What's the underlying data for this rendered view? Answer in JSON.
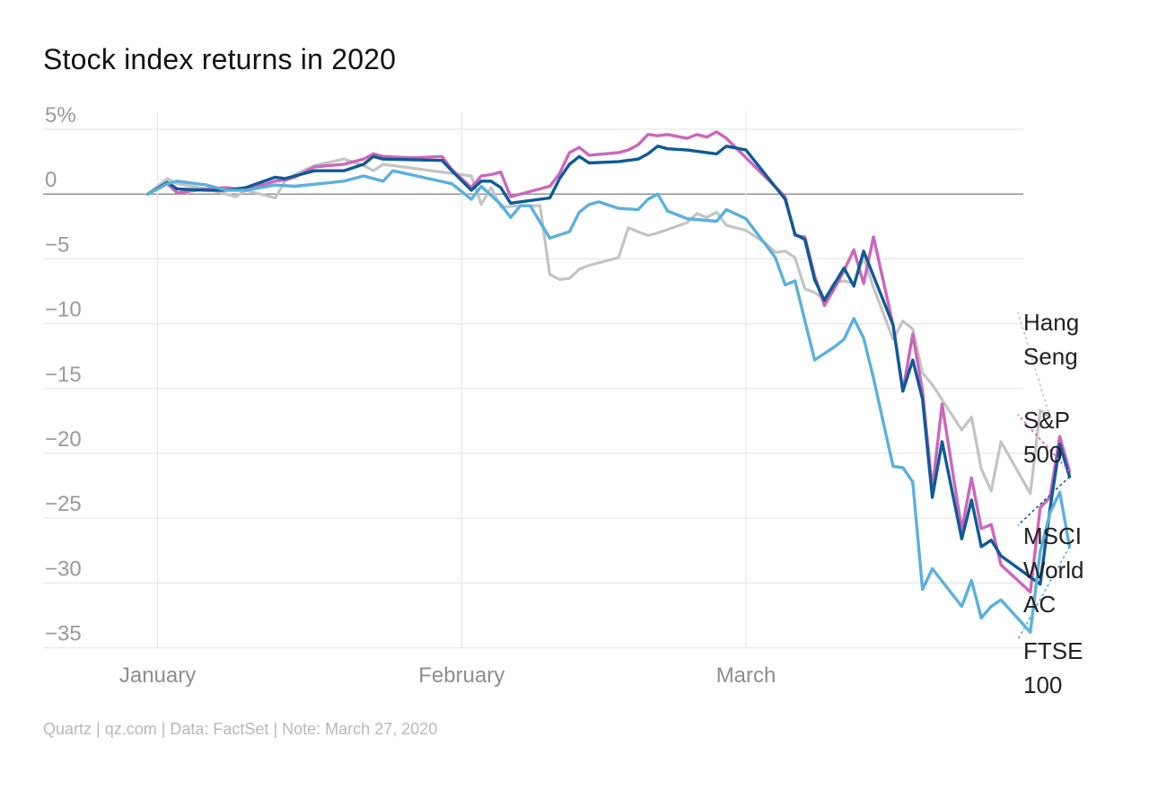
{
  "chart_data": {
    "type": "line",
    "title": "Stock index returns in 2020",
    "source": "Quartz | qz.com | Data: FactSet | Note: March 27, 2020",
    "xlabel": "",
    "ylabel": "",
    "ylim": [
      -35,
      5
    ],
    "y_ticks": [
      5,
      0,
      -5,
      -10,
      -15,
      -20,
      -25,
      -30,
      -35
    ],
    "y_tick_labels": [
      "5%",
      "0",
      "−5",
      "−10",
      "−15",
      "−20",
      "−25",
      "−30",
      "−35"
    ],
    "x_ticks": [
      {
        "label": "January",
        "date": "2020-01-01"
      },
      {
        "label": "February",
        "date": "2020-02-01"
      },
      {
        "label": "March",
        "date": "2020-03-01"
      }
    ],
    "x_range": [
      "2019-12-26",
      "2020-03-28"
    ],
    "grid": true,
    "legend": "direct labels at right end",
    "series": [
      {
        "name": "Hang Seng",
        "label_lines": [
          "Hang",
          "Seng"
        ],
        "color": "#c4c4c4",
        "points": [
          [
            "2019-12-31",
            0.0
          ],
          [
            "2020-01-02",
            1.2
          ],
          [
            "2020-01-03",
            0.8
          ],
          [
            "2020-01-06",
            0.4
          ],
          [
            "2020-01-08",
            0.0
          ],
          [
            "2020-01-09",
            -0.2
          ],
          [
            "2020-01-10",
            0.3
          ],
          [
            "2020-01-13",
            -0.3
          ],
          [
            "2020-01-14",
            1.0
          ],
          [
            "2020-01-15",
            1.5
          ],
          [
            "2020-01-17",
            2.2
          ],
          [
            "2020-01-20",
            2.7
          ],
          [
            "2020-01-22",
            2.2
          ],
          [
            "2020-01-23",
            1.8
          ],
          [
            "2020-01-24",
            2.3
          ],
          [
            "2020-02-02",
            1.4
          ],
          [
            "2020-02-03",
            -0.8
          ],
          [
            "2020-02-04",
            0.5
          ],
          [
            "2020-02-05",
            -1.0
          ],
          [
            "2020-02-07",
            -0.9
          ],
          [
            "2020-02-09",
            -0.9
          ],
          [
            "2020-02-10",
            -6.2
          ],
          [
            "2020-02-11",
            -6.6
          ],
          [
            "2020-02-12",
            -6.5
          ],
          [
            "2020-02-13",
            -5.8
          ],
          [
            "2020-02-14",
            -5.5
          ],
          [
            "2020-02-17",
            -4.9
          ],
          [
            "2020-02-18",
            -2.6
          ],
          [
            "2020-02-19",
            -2.9
          ],
          [
            "2020-02-20",
            -3.2
          ],
          [
            "2020-02-21",
            -3.0
          ],
          [
            "2020-02-24",
            -2.2
          ],
          [
            "2020-02-25",
            -1.5
          ],
          [
            "2020-02-26",
            -1.8
          ],
          [
            "2020-02-27",
            -1.4
          ],
          [
            "2020-02-28",
            -2.4
          ],
          [
            "2020-03-01",
            -2.8
          ],
          [
            "2020-03-02",
            -3.3
          ],
          [
            "2020-03-03",
            -3.8
          ],
          [
            "2020-03-04",
            -4.5
          ],
          [
            "2020-03-05",
            -4.4
          ],
          [
            "2020-03-06",
            -4.9
          ],
          [
            "2020-03-07",
            -7.3
          ],
          [
            "2020-03-08",
            -7.6
          ],
          [
            "2020-03-09",
            -8.1
          ],
          [
            "2020-03-10",
            -6.8
          ],
          [
            "2020-03-11",
            -6.7
          ],
          [
            "2020-03-12",
            -6.9
          ],
          [
            "2020-03-13",
            -4.9
          ],
          [
            "2020-03-14",
            -7.2
          ],
          [
            "2020-03-16",
            -11.2
          ],
          [
            "2020-03-17",
            -9.8
          ],
          [
            "2020-03-18",
            -10.4
          ],
          [
            "2020-03-19",
            -13.8
          ],
          [
            "2020-03-20",
            -14.7
          ],
          [
            "2020-03-23",
            -18.2
          ],
          [
            "2020-03-24",
            -17.2
          ],
          [
            "2020-03-25",
            -21.2
          ],
          [
            "2020-03-26",
            -22.9
          ],
          [
            "2020-03-27",
            -19.1
          ],
          [
            "2020-03-30",
            -23.1
          ],
          [
            "2020-03-31",
            -16.7
          ],
          [
            "2020-04-01",
            -17.2
          ]
        ]
      },
      {
        "name": "S&P 500",
        "label_lines": [
          "S&P",
          "500"
        ],
        "color": "#cc66bb",
        "points": [
          [
            "2019-12-31",
            0.0
          ],
          [
            "2020-01-02",
            0.8
          ],
          [
            "2020-01-03",
            0.1
          ],
          [
            "2020-01-06",
            0.4
          ],
          [
            "2020-01-08",
            0.5
          ],
          [
            "2020-01-09",
            0.4
          ],
          [
            "2020-01-10",
            0.3
          ],
          [
            "2020-01-13",
            1.0
          ],
          [
            "2020-01-14",
            1.1
          ],
          [
            "2020-01-15",
            1.3
          ],
          [
            "2020-01-17",
            2.1
          ],
          [
            "2020-01-20",
            2.3
          ],
          [
            "2020-01-22",
            2.7
          ],
          [
            "2020-01-23",
            3.1
          ],
          [
            "2020-01-24",
            2.9
          ],
          [
            "2020-01-27",
            2.8
          ],
          [
            "2020-01-30",
            2.9
          ],
          [
            "2020-01-31",
            1.9
          ],
          [
            "2020-02-02",
            0.5
          ],
          [
            "2020-02-03",
            1.4
          ],
          [
            "2020-02-04",
            1.5
          ],
          [
            "2020-02-05",
            1.7
          ],
          [
            "2020-02-06",
            -0.2
          ],
          [
            "2020-02-10",
            0.6
          ],
          [
            "2020-02-11",
            1.6
          ],
          [
            "2020-02-12",
            3.2
          ],
          [
            "2020-02-13",
            3.6
          ],
          [
            "2020-02-14",
            3.0
          ],
          [
            "2020-02-17",
            3.2
          ],
          [
            "2020-02-18",
            3.4
          ],
          [
            "2020-02-19",
            3.8
          ],
          [
            "2020-02-20",
            4.6
          ],
          [
            "2020-02-21",
            4.5
          ],
          [
            "2020-02-22",
            4.6
          ],
          [
            "2020-02-24",
            4.3
          ],
          [
            "2020-02-25",
            4.6
          ],
          [
            "2020-02-26",
            4.4
          ],
          [
            "2020-02-27",
            4.8
          ],
          [
            "2020-02-28",
            4.3
          ],
          [
            "2020-03-05",
            -0.2
          ],
          [
            "2020-03-06",
            -3.2
          ],
          [
            "2020-03-07",
            -3.3
          ],
          [
            "2020-03-08",
            -6.3
          ],
          [
            "2020-03-09",
            -8.6
          ],
          [
            "2020-03-10",
            -7.3
          ],
          [
            "2020-03-11",
            -5.9
          ],
          [
            "2020-03-12",
            -4.3
          ],
          [
            "2020-03-13",
            -6.9
          ],
          [
            "2020-03-14",
            -3.3
          ],
          [
            "2020-03-16",
            -10.1
          ],
          [
            "2020-03-17",
            -15.2
          ],
          [
            "2020-03-18",
            -10.8
          ],
          [
            "2020-03-19",
            -15.2
          ],
          [
            "2020-03-20",
            -22.8
          ],
          [
            "2020-03-21",
            -16.2
          ],
          [
            "2020-03-23",
            -25.9
          ],
          [
            "2020-03-24",
            -21.9
          ],
          [
            "2020-03-25",
            -25.8
          ],
          [
            "2020-03-26",
            -25.5
          ],
          [
            "2020-03-27",
            -28.6
          ],
          [
            "2020-03-30",
            -30.7
          ],
          [
            "2020-03-31",
            -24.2
          ],
          [
            "2020-04-01",
            -23.4
          ],
          [
            "2020-04-02",
            -18.7
          ],
          [
            "2020-04-03",
            -21.4
          ]
        ]
      },
      {
        "name": "MSCI World AC",
        "label_lines": [
          "MSCI",
          "World",
          "AC"
        ],
        "color": "#0f5a96",
        "points": [
          [
            "2019-12-31",
            0.0
          ],
          [
            "2020-01-02",
            0.9
          ],
          [
            "2020-01-03",
            0.4
          ],
          [
            "2020-01-06",
            0.3
          ],
          [
            "2020-01-08",
            0.3
          ],
          [
            "2020-01-09",
            0.4
          ],
          [
            "2020-01-10",
            0.5
          ],
          [
            "2020-01-13",
            1.3
          ],
          [
            "2020-01-14",
            1.2
          ],
          [
            "2020-01-15",
            1.4
          ],
          [
            "2020-01-17",
            1.8
          ],
          [
            "2020-01-20",
            1.8
          ],
          [
            "2020-01-22",
            2.3
          ],
          [
            "2020-01-23",
            2.9
          ],
          [
            "2020-01-24",
            2.7
          ],
          [
            "2020-01-30",
            2.6
          ],
          [
            "2020-01-31",
            1.8
          ],
          [
            "2020-02-02",
            0.3
          ],
          [
            "2020-02-03",
            1.0
          ],
          [
            "2020-02-04",
            1.0
          ],
          [
            "2020-02-05",
            0.5
          ],
          [
            "2020-02-06",
            -0.7
          ],
          [
            "2020-02-10",
            -0.3
          ],
          [
            "2020-02-11",
            1.2
          ],
          [
            "2020-02-12",
            2.3
          ],
          [
            "2020-02-13",
            2.9
          ],
          [
            "2020-02-14",
            2.4
          ],
          [
            "2020-02-17",
            2.5
          ],
          [
            "2020-02-19",
            2.7
          ],
          [
            "2020-02-20",
            3.1
          ],
          [
            "2020-02-21",
            3.7
          ],
          [
            "2020-02-22",
            3.5
          ],
          [
            "2020-02-24",
            3.4
          ],
          [
            "2020-02-27",
            3.1
          ],
          [
            "2020-02-28",
            3.7
          ],
          [
            "2020-03-01",
            3.4
          ],
          [
            "2020-03-05",
            -0.4
          ],
          [
            "2020-03-06",
            -3.1
          ],
          [
            "2020-03-07",
            -3.5
          ],
          [
            "2020-03-08",
            -6.6
          ],
          [
            "2020-03-09",
            -8.2
          ],
          [
            "2020-03-11",
            -5.7
          ],
          [
            "2020-03-12",
            -7.1
          ],
          [
            "2020-03-13",
            -4.4
          ],
          [
            "2020-03-16",
            -10.1
          ],
          [
            "2020-03-17",
            -15.2
          ],
          [
            "2020-03-18",
            -12.8
          ],
          [
            "2020-03-19",
            -15.8
          ],
          [
            "2020-03-20",
            -23.4
          ],
          [
            "2020-03-21",
            -19.1
          ],
          [
            "2020-03-23",
            -26.6
          ],
          [
            "2020-03-24",
            -23.6
          ],
          [
            "2020-03-25",
            -27.2
          ],
          [
            "2020-03-26",
            -26.7
          ],
          [
            "2020-03-27",
            -27.9
          ],
          [
            "2020-03-31",
            -30.1
          ],
          [
            "2020-04-01",
            -24.3
          ],
          [
            "2020-04-02",
            -19.3
          ],
          [
            "2020-04-03",
            -21.8
          ]
        ]
      },
      {
        "name": "FTSE 100",
        "label_lines": [
          "FTSE",
          "100"
        ],
        "color": "#5bb0de",
        "points": [
          [
            "2019-12-31",
            0.0
          ],
          [
            "2020-01-02",
            0.8
          ],
          [
            "2020-01-03",
            1.0
          ],
          [
            "2020-01-06",
            0.7
          ],
          [
            "2020-01-08",
            0.3
          ],
          [
            "2020-01-10",
            0.3
          ],
          [
            "2020-01-13",
            0.7
          ],
          [
            "2020-01-15",
            0.6
          ],
          [
            "2020-01-20",
            1.0
          ],
          [
            "2020-01-22",
            1.4
          ],
          [
            "2020-01-24",
            1.0
          ],
          [
            "2020-01-25",
            1.8
          ],
          [
            "2020-01-31",
            0.8
          ],
          [
            "2020-02-02",
            -0.4
          ],
          [
            "2020-02-03",
            0.6
          ],
          [
            "2020-02-05",
            -0.8
          ],
          [
            "2020-02-06",
            -1.8
          ],
          [
            "2020-02-07",
            -0.9
          ],
          [
            "2020-02-08",
            -0.9
          ],
          [
            "2020-02-10",
            -3.4
          ],
          [
            "2020-02-12",
            -2.9
          ],
          [
            "2020-02-13",
            -1.4
          ],
          [
            "2020-02-14",
            -0.8
          ],
          [
            "2020-02-15",
            -0.6
          ],
          [
            "2020-02-17",
            -1.1
          ],
          [
            "2020-02-19",
            -1.2
          ],
          [
            "2020-02-20",
            -0.4
          ],
          [
            "2020-02-21",
            0.0
          ],
          [
            "2020-02-22",
            -1.3
          ],
          [
            "2020-02-24",
            -1.9
          ],
          [
            "2020-02-27",
            -2.1
          ],
          [
            "2020-02-28",
            -1.2
          ],
          [
            "2020-03-01",
            -1.9
          ],
          [
            "2020-03-04",
            -4.9
          ],
          [
            "2020-03-05",
            -7.0
          ],
          [
            "2020-03-06",
            -6.7
          ],
          [
            "2020-03-08",
            -12.8
          ],
          [
            "2020-03-10",
            -11.8
          ],
          [
            "2020-03-11",
            -11.2
          ],
          [
            "2020-03-12",
            -9.6
          ],
          [
            "2020-03-13",
            -11.1
          ],
          [
            "2020-03-14",
            -14.2
          ],
          [
            "2020-03-16",
            -21.0
          ],
          [
            "2020-03-17",
            -21.1
          ],
          [
            "2020-03-18",
            -22.2
          ],
          [
            "2020-03-19",
            -30.5
          ],
          [
            "2020-03-20",
            -28.9
          ],
          [
            "2020-03-23",
            -31.8
          ],
          [
            "2020-03-24",
            -29.8
          ],
          [
            "2020-03-25",
            -32.7
          ],
          [
            "2020-03-26",
            -31.8
          ],
          [
            "2020-03-27",
            -31.3
          ],
          [
            "2020-03-30",
            -33.8
          ],
          [
            "2020-03-31",
            -27.6
          ],
          [
            "2020-04-01",
            -24.6
          ],
          [
            "2020-04-02",
            -23.0
          ],
          [
            "2020-04-03",
            -27.2
          ]
        ]
      }
    ]
  }
}
